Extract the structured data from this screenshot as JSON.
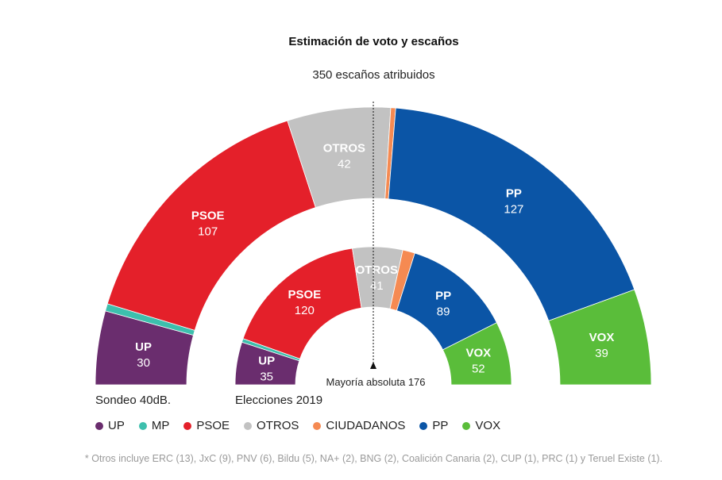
{
  "chart_data": {
    "type": "hemicycle",
    "title": "Estimación de voto y escaños",
    "subtitle": "350 escaños atribuidos",
    "total_seats": 350,
    "majority": {
      "label": "Mayoría absoluta 176",
      "seats": 176
    },
    "colors": {
      "UP": "#6a2d6e",
      "MP": "#3dbfad",
      "PSOE": "#e4202a",
      "OTROS": "#c2c2c2",
      "CIUDADANOS": "#f58a52",
      "PP": "#0b55a6",
      "VOX": "#5abd3a"
    },
    "series": [
      {
        "name": "Sondeo 40dB.",
        "seats": [
          {
            "party": "UP",
            "value": 30
          },
          {
            "party": "MP",
            "value": 3
          },
          {
            "party": "PSOE",
            "value": 107
          },
          {
            "party": "OTROS",
            "value": 42
          },
          {
            "party": "CIUDADANOS",
            "value": 2
          },
          {
            "party": "PP",
            "value": 127
          },
          {
            "party": "VOX",
            "value": 39
          }
        ]
      },
      {
        "name": "Elecciones 2019",
        "seats": [
          {
            "party": "UP",
            "value": 35
          },
          {
            "party": "MP",
            "value": 3
          },
          {
            "party": "PSOE",
            "value": 120
          },
          {
            "party": "OTROS",
            "value": 41
          },
          {
            "party": "CIUDADANOS",
            "value": 10
          },
          {
            "party": "PP",
            "value": 89
          },
          {
            "party": "VOX",
            "value": 52
          }
        ]
      }
    ],
    "legend": [
      "UP",
      "MP",
      "PSOE",
      "OTROS",
      "CIUDADANOS",
      "PP",
      "VOX"
    ],
    "footnote": "* Otros incluye ERC (13), JxC (9), PNV (6), Bildu (5), NA+ (2), BNG (2), Coalición Canaria (2), CUP (1), PRC (1) y Teruel Existe (1)."
  }
}
